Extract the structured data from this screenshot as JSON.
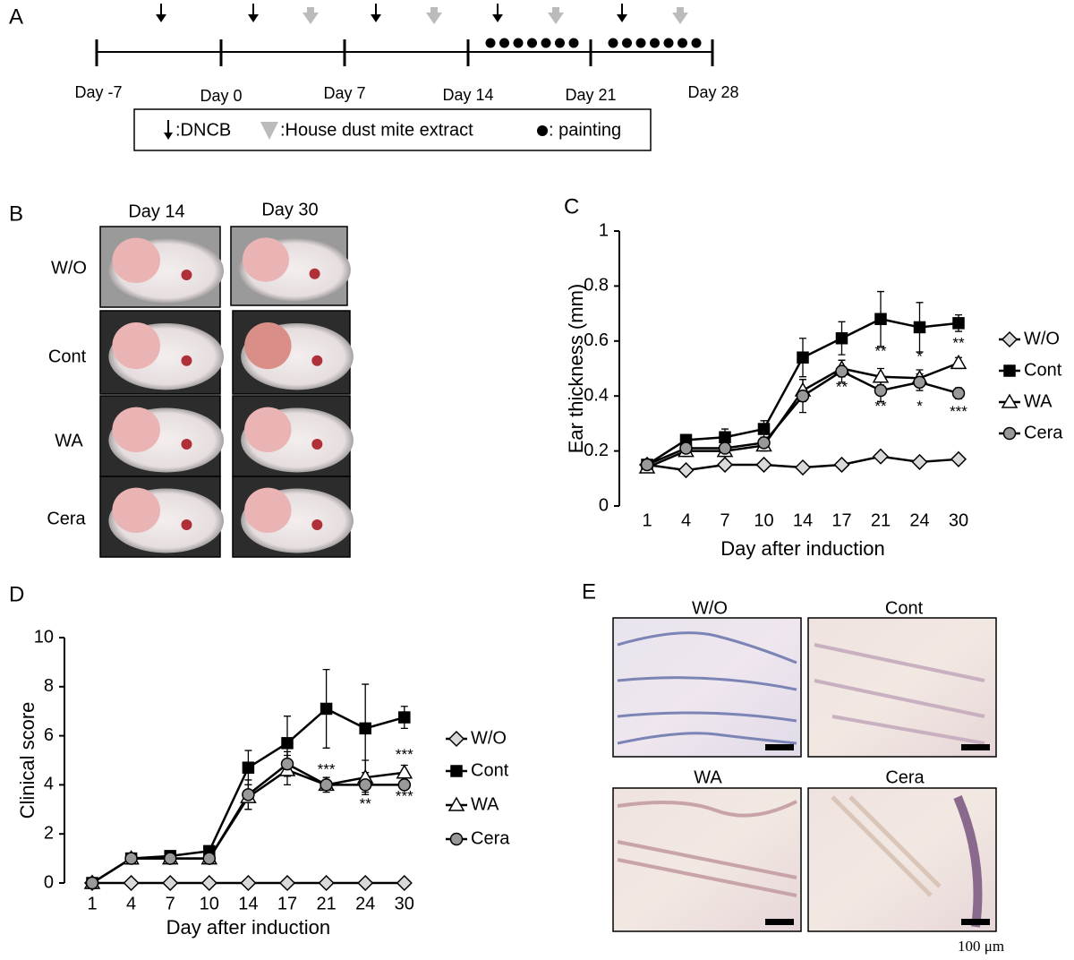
{
  "panel_labels": [
    "A",
    "B",
    "C",
    "D",
    "E"
  ],
  "timeline": {
    "days": [
      "Day -7",
      "Day 0",
      "Day 7",
      "Day 14",
      "Day 21",
      "Day 28"
    ],
    "legend": [
      ":DNCB",
      ":House dust mite extract",
      ": painting"
    ]
  },
  "photos": {
    "columns": [
      "Day 14",
      "Day 30"
    ],
    "rows": [
      "W/O",
      "Cont",
      "WA",
      "Cera"
    ]
  },
  "histology": {
    "labels": [
      "W/O",
      "Cont",
      "WA",
      "Cera"
    ],
    "scale": "100 μm"
  },
  "chart_data": [
    {
      "type": "line",
      "xlabel": "Day after induction",
      "ylabel": "Ear thickness (mm)",
      "categories": [
        "1",
        "4",
        "7",
        "10",
        "14",
        "17",
        "21",
        "24",
        "30"
      ],
      "ylim": [
        0,
        1
      ],
      "yticks": [
        0,
        0.2,
        0.4,
        0.6,
        0.8,
        1
      ],
      "series": [
        {
          "name": "W/O",
          "marker": "diamond",
          "color": "#d9d9d9",
          "values": [
            0.15,
            0.13,
            0.15,
            0.15,
            0.14,
            0.15,
            0.18,
            0.16,
            0.17
          ]
        },
        {
          "name": "Cont",
          "marker": "square",
          "color": "#000000",
          "values": [
            0.15,
            0.24,
            0.25,
            0.28,
            0.54,
            0.61,
            0.68,
            0.65,
            0.665
          ],
          "errors": [
            0.01,
            0.02,
            0.03,
            0.03,
            0.07,
            0.06,
            0.1,
            0.09,
            0.03
          ]
        },
        {
          "name": "WA",
          "marker": "triangle",
          "color": "#ffffff",
          "values": [
            0.14,
            0.2,
            0.2,
            0.22,
            0.42,
            0.5,
            0.47,
            0.465,
            0.52
          ],
          "errors": [
            0.01,
            0.02,
            0.02,
            0.02,
            0.04,
            0.03,
            0.03,
            0.03,
            0.02
          ]
        },
        {
          "name": "Cera",
          "marker": "circle",
          "color": "#999999",
          "values": [
            0.15,
            0.21,
            0.21,
            0.23,
            0.4,
            0.49,
            0.42,
            0.45,
            0.41
          ],
          "errors": [
            0.01,
            0.02,
            0.02,
            0.02,
            0.06,
            0.04,
            0.04,
            0.03,
            0.02
          ]
        }
      ],
      "annotations": [
        {
          "text": "**",
          "x": "17",
          "y": 0.43
        },
        {
          "text": "**",
          "x": "21",
          "y": 0.56
        },
        {
          "text": "**",
          "x": "21",
          "y": 0.36
        },
        {
          "text": "*",
          "x": "24",
          "y": 0.54
        },
        {
          "text": "*",
          "x": "24",
          "y": 0.36
        },
        {
          "text": "**",
          "x": "30",
          "y": 0.59
        },
        {
          "text": "***",
          "x": "30",
          "y": 0.34
        }
      ]
    },
    {
      "type": "line",
      "xlabel": "Day after induction",
      "ylabel": "Clinical score",
      "categories": [
        "1",
        "4",
        "7",
        "10",
        "14",
        "17",
        "21",
        "24",
        "30"
      ],
      "ylim": [
        0,
        10
      ],
      "yticks": [
        0,
        2,
        4,
        6,
        8,
        10
      ],
      "series": [
        {
          "name": "W/O",
          "marker": "diamond",
          "color": "#d9d9d9",
          "values": [
            0,
            0,
            0,
            0,
            0,
            0,
            0,
            0,
            0
          ]
        },
        {
          "name": "Cont",
          "marker": "square",
          "color": "#000000",
          "values": [
            0,
            1,
            1.1,
            1.3,
            4.7,
            5.7,
            7.1,
            6.3,
            6.75
          ],
          "errors": [
            0,
            0.1,
            0.1,
            0.2,
            0.7,
            1.1,
            1.6,
            1.8,
            0.45
          ]
        },
        {
          "name": "WA",
          "marker": "triangle",
          "color": "#ffffff",
          "values": [
            0,
            1,
            1,
            1,
            3.5,
            4.6,
            4,
            4.3,
            4.5
          ],
          "errors": [
            0,
            0.1,
            0.1,
            0.1,
            0.5,
            0.6,
            0.3,
            0.7,
            0.3
          ]
        },
        {
          "name": "Cera",
          "marker": "circle",
          "color": "#999999",
          "values": [
            0,
            1,
            1,
            1,
            3.6,
            4.85,
            4,
            4,
            4
          ],
          "errors": [
            0,
            0.1,
            0.1,
            0.1,
            0.6,
            0.5,
            0.2,
            0.3,
            0.2
          ]
        }
      ],
      "annotations": [
        {
          "text": "***",
          "x": "21",
          "y": 4.6
        },
        {
          "text": "***",
          "x": "30",
          "y": 5.2
        },
        {
          "text": "**",
          "x": "24",
          "y": 3.2
        },
        {
          "text": "***",
          "x": "30",
          "y": 3.5
        }
      ]
    }
  ]
}
